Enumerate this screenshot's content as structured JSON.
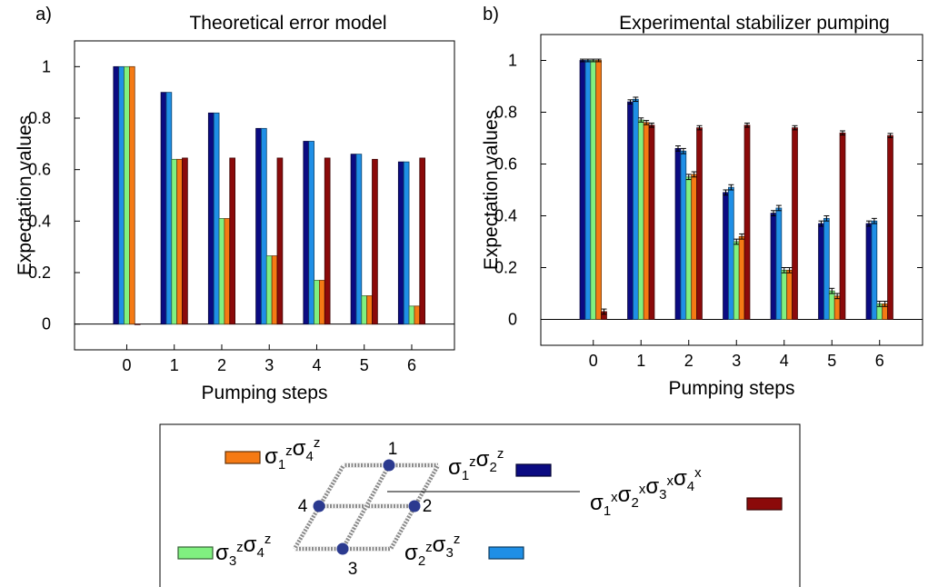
{
  "series_colors": [
    "#0b0b82",
    "#1f8fe6",
    "#80f080",
    "#f57a14",
    "#8b0a0a"
  ],
  "chart_data": [
    {
      "type": "bar",
      "panel_label": "a)",
      "title": "Theoretical error model",
      "xlabel": "Pumping steps",
      "ylabel": "Expectation values",
      "categories": [
        "0",
        "1",
        "2",
        "3",
        "4",
        "5",
        "6"
      ],
      "yticks": [
        "0",
        "0.2",
        "0.4",
        "0.6",
        "0.8",
        "1"
      ],
      "ylim": [
        -0.1,
        1.1
      ],
      "grid": false,
      "series": [
        {
          "values": [
            1.0,
            0.9,
            0.82,
            0.76,
            0.71,
            0.66,
            0.63
          ]
        },
        {
          "values": [
            1.0,
            0.9,
            0.82,
            0.76,
            0.71,
            0.66,
            0.63
          ]
        },
        {
          "values": [
            1.0,
            0.64,
            0.41,
            0.265,
            0.17,
            0.11,
            0.07
          ]
        },
        {
          "values": [
            1.0,
            0.64,
            0.41,
            0.265,
            0.17,
            0.11,
            0.07
          ]
        },
        {
          "values": [
            0.0,
            0.645,
            0.645,
            0.645,
            0.645,
            0.64,
            0.645
          ]
        }
      ]
    },
    {
      "type": "bar",
      "panel_label": "b)",
      "title": "Experimental stabilizer pumping",
      "xlabel": "Pumping steps",
      "ylabel": "Expectation values",
      "categories": [
        "0",
        "1",
        "2",
        "3",
        "4",
        "5",
        "6"
      ],
      "yticks": [
        "0",
        "0.2",
        "0.4",
        "0.6",
        "0.8",
        "1"
      ],
      "ylim": [
        -0.1,
        1.1
      ],
      "grid": false,
      "error_bars": true,
      "series": [
        {
          "values": [
            1.0,
            0.84,
            0.66,
            0.49,
            0.41,
            0.37,
            0.37
          ],
          "errors": [
            0.005,
            0.008,
            0.01,
            0.01,
            0.01,
            0.01,
            0.01
          ]
        },
        {
          "values": [
            1.0,
            0.85,
            0.65,
            0.51,
            0.43,
            0.39,
            0.38
          ],
          "errors": [
            0.005,
            0.008,
            0.01,
            0.01,
            0.01,
            0.01,
            0.01
          ]
        },
        {
          "values": [
            1.0,
            0.77,
            0.55,
            0.3,
            0.19,
            0.11,
            0.06
          ],
          "errors": [
            0.005,
            0.008,
            0.01,
            0.01,
            0.01,
            0.01,
            0.01
          ]
        },
        {
          "values": [
            1.0,
            0.76,
            0.56,
            0.32,
            0.19,
            0.09,
            0.06
          ],
          "errors": [
            0.005,
            0.008,
            0.01,
            0.01,
            0.01,
            0.01,
            0.01
          ]
        },
        {
          "values": [
            0.03,
            0.75,
            0.74,
            0.75,
            0.74,
            0.72,
            0.71
          ],
          "errors": [
            0.01,
            0.008,
            0.008,
            0.008,
            0.008,
            0.008,
            0.008
          ]
        }
      ]
    }
  ],
  "legend": {
    "entries": [
      {
        "base": "σ",
        "parts": [
          [
            "1",
            "z"
          ],
          [
            "2",
            "z"
          ]
        ],
        "color": "#0b0b82"
      },
      {
        "base": "σ",
        "parts": [
          [
            "2",
            "z"
          ],
          [
            "3",
            "z"
          ]
        ],
        "color": "#1f8fe6"
      },
      {
        "base": "σ",
        "parts": [
          [
            "3",
            "z"
          ],
          [
            "4",
            "z"
          ]
        ],
        "color": "#80f080"
      },
      {
        "base": "σ",
        "parts": [
          [
            "1",
            "z"
          ],
          [
            "4",
            "z"
          ]
        ],
        "color": "#f57a14"
      },
      {
        "base": "σ",
        "parts": [
          [
            "1",
            "x"
          ],
          [
            "2",
            "x"
          ],
          [
            "3",
            "x"
          ],
          [
            "4",
            "x"
          ]
        ],
        "color": "#8b0a0a"
      }
    ],
    "qubits": [
      "1",
      "2",
      "3",
      "4"
    ]
  }
}
